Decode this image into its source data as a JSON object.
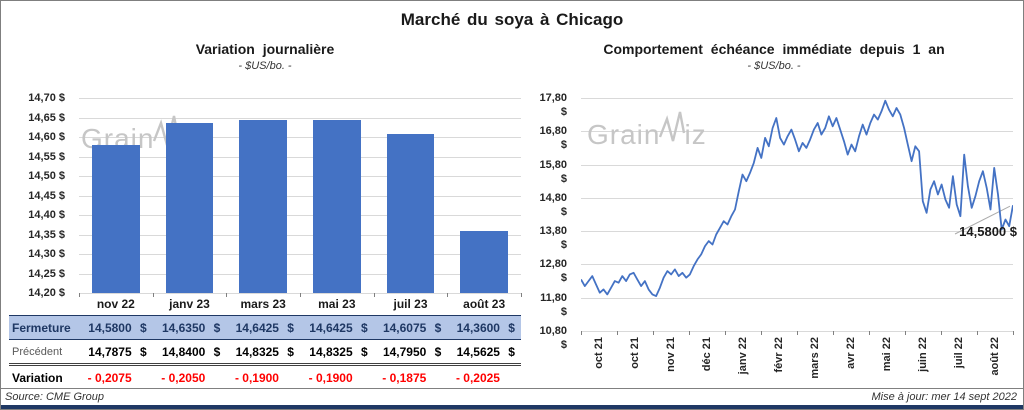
{
  "page_title": "Marché du soya à Chicago",
  "watermark": "GrainWiz",
  "footer": {
    "source": "Source: CME Group",
    "updated": "Mise à jour: mer 14 sept 2022"
  },
  "colors": {
    "accent_blue": "#4472C4",
    "table_highlight_bg": "#B4C6E7",
    "table_highlight_text": "#1F3864",
    "negative_red": "#FF0000",
    "gridline": "#D9D9D9",
    "watermark_gray": "#C6C6C6",
    "bottom_bar_navy": "#1F3864"
  },
  "chart_data": [
    {
      "type": "bar",
      "title": "Variation journalière",
      "subtitle": "- $US/bo. -",
      "categories": [
        "nov 22",
        "janv 23",
        "mars 23",
        "mai 23",
        "juil 23",
        "août 23"
      ],
      "values": [
        14.58,
        14.635,
        14.6425,
        14.6425,
        14.6075,
        14.36
      ],
      "ylim": [
        14.2,
        14.7
      ],
      "ytick_step": 0.05,
      "ytick_labels": [
        "14,70 $",
        "14,65 $",
        "14,60 $",
        "14,55 $",
        "14,50 $",
        "14,45 $",
        "14,40 $",
        "14,35 $",
        "14,30 $",
        "14,25 $",
        "14,20 $"
      ],
      "grid": true,
      "legend": false,
      "bar_color": "#4472C4"
    },
    {
      "type": "line",
      "title": "Comportement échéance immédiate depuis 1 an",
      "subtitle": "- $US/bo. -",
      "x_labels": [
        "oct 21",
        "oct 21",
        "nov 21",
        "déc 21",
        "janv 22",
        "févr 22",
        "mars 22",
        "avr 22",
        "mai 22",
        "juin 22",
        "juil 22",
        "août 22"
      ],
      "ylim": [
        10.8,
        17.8
      ],
      "ytick_step": 1.0,
      "ytick_labels": [
        "17,80 $",
        "16,80 $",
        "15,80 $",
        "14,80 $",
        "13,80 $",
        "12,80 $",
        "11,80 $",
        "10,80 $"
      ],
      "grid": true,
      "legend": false,
      "line_color": "#4472C4",
      "annotation": {
        "text": "14,5800 $",
        "value": 14.58
      },
      "values": [
        12.35,
        12.15,
        12.3,
        12.45,
        12.2,
        11.95,
        12.05,
        11.9,
        12.1,
        12.3,
        12.25,
        12.45,
        12.3,
        12.5,
        12.55,
        12.35,
        12.15,
        12.3,
        12.05,
        11.9,
        11.85,
        12.1,
        12.4,
        12.6,
        12.5,
        12.65,
        12.45,
        12.55,
        12.4,
        12.5,
        12.75,
        12.95,
        13.1,
        13.35,
        13.5,
        13.4,
        13.7,
        13.9,
        14.1,
        14.0,
        14.25,
        14.45,
        15.0,
        15.5,
        15.3,
        15.55,
        15.85,
        16.3,
        16.0,
        16.6,
        16.35,
        16.9,
        17.2,
        16.6,
        16.4,
        16.65,
        16.85,
        16.55,
        16.2,
        16.45,
        16.3,
        16.55,
        16.85,
        17.05,
        16.7,
        16.9,
        17.25,
        16.95,
        17.2,
        16.85,
        16.5,
        16.1,
        16.4,
        16.2,
        16.65,
        17.0,
        16.7,
        17.05,
        17.3,
        17.15,
        17.4,
        17.72,
        17.45,
        17.25,
        17.5,
        17.3,
        16.9,
        16.4,
        15.9,
        16.35,
        16.2,
        14.7,
        14.35,
        15.05,
        15.3,
        14.9,
        15.2,
        14.75,
        14.5,
        15.45,
        14.6,
        14.25,
        16.1,
        15.15,
        14.5,
        14.85,
        15.3,
        15.6,
        15.1,
        14.45,
        15.7,
        14.9,
        13.85,
        14.15,
        13.95,
        14.58
      ]
    }
  ],
  "table": {
    "rows": [
      {
        "label": "Fermeture",
        "style": "highlight",
        "currency": "$",
        "values": [
          "14,5800",
          "14,6350",
          "14,6425",
          "14,6425",
          "14,6075",
          "14,3600"
        ]
      },
      {
        "label": "Précédent",
        "style": "normal",
        "currency": "$",
        "values": [
          "14,7875",
          "14,8400",
          "14,8325",
          "14,8325",
          "14,7950",
          "14,5625"
        ]
      },
      {
        "label": "Variation",
        "style": "negative",
        "currency": "",
        "values": [
          "- 0,2075",
          "- 0,2050",
          "- 0,1900",
          "- 0,1900",
          "- 0,1875",
          "- 0,2025"
        ]
      }
    ]
  }
}
